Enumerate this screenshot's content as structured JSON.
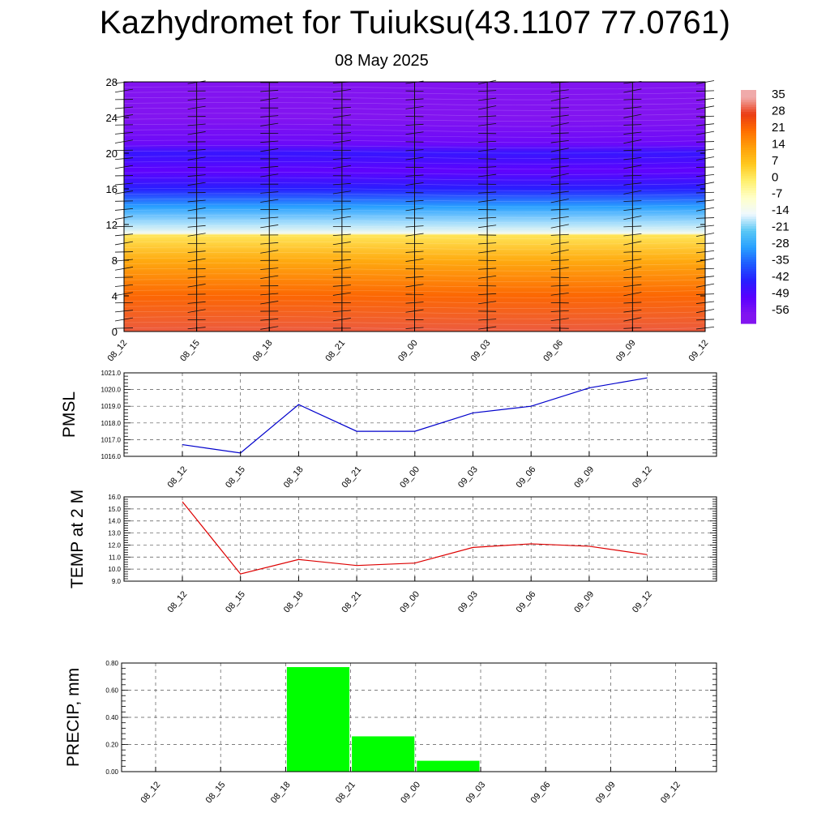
{
  "header": {
    "title": "Kazhydromet for Tuiuksu(43.1107 77.0761)",
    "subtitle": "08 May 2025"
  },
  "colorbar": {
    "labels": [
      "35",
      "28",
      "21",
      "14",
      "7",
      "0",
      "-7",
      "-14",
      "-21",
      "-28",
      "-35",
      "-42",
      "-49",
      "-56"
    ]
  },
  "chart_data": [
    {
      "type": "heatmap",
      "title": "Kazhydromet for Tuiuksu(43.1107 77.0761)",
      "subtitle": "08 May 2025",
      "x": [
        "08_12",
        "08_15",
        "08_18",
        "08_21",
        "09_00",
        "09_03",
        "09_06",
        "09_09",
        "09_12"
      ],
      "ylim": [
        0,
        28
      ],
      "yticks": [
        "0",
        "4",
        "8",
        "12",
        "16",
        "20",
        "24",
        "28"
      ],
      "colorbar_range": [
        -56,
        35
      ],
      "colorbar_ticks": [
        "35",
        "28",
        "21",
        "14",
        "7",
        "0",
        "-7",
        "-14",
        "-21",
        "-28",
        "-35",
        "-42",
        "-49",
        "-56"
      ],
      "profile": [
        {
          "level": 0,
          "value": 30
        },
        {
          "level": 4,
          "value": 22
        },
        {
          "level": 8,
          "value": 12
        },
        {
          "level": 10.8,
          "value": 2
        },
        {
          "level": 11,
          "value": -12
        },
        {
          "level": 12,
          "value": -17
        },
        {
          "level": 14,
          "value": -28
        },
        {
          "level": 16,
          "value": -42
        },
        {
          "level": 18,
          "value": -50
        },
        {
          "level": 20,
          "value": -44
        },
        {
          "level": 21,
          "value": -52
        },
        {
          "level": 24,
          "value": -56
        },
        {
          "level": 28,
          "value": -56
        }
      ],
      "overlay": "wind barbs at each time step"
    },
    {
      "type": "line",
      "ylabel": "PMSL",
      "x": [
        "08_12",
        "08_15",
        "08_18",
        "08_21",
        "09_00",
        "09_03",
        "09_06",
        "09_09",
        "09_12"
      ],
      "series": [
        {
          "values": [
            1016.7,
            1016.2,
            1019.1,
            1017.5,
            1017.5,
            1018.6,
            1019.0,
            1020.1,
            1020.7
          ],
          "color": "#0000cc"
        }
      ],
      "ylim": [
        1016.0,
        1021.0
      ],
      "yticks": [
        "1016.0",
        "1017.0",
        "1018.0",
        "1019.0",
        "1020.0",
        "1021.0"
      ],
      "grid": true
    },
    {
      "type": "line",
      "ylabel": "TEMP at 2 M",
      "x": [
        "08_12",
        "08_15",
        "08_18",
        "08_21",
        "09_00",
        "09_03",
        "09_06",
        "09_09",
        "09_12"
      ],
      "series": [
        {
          "values": [
            15.6,
            9.6,
            10.8,
            10.3,
            10.5,
            11.8,
            12.1,
            11.9,
            11.2
          ],
          "color": "#dd0000"
        }
      ],
      "ylim": [
        9.0,
        16.0
      ],
      "yticks": [
        "9.0",
        "10.0",
        "11.0",
        "12.0",
        "13.0",
        "14.0",
        "15.0",
        "16.0"
      ],
      "grid": true
    },
    {
      "type": "bar",
      "ylabel": "PRECIP, mm",
      "categories": [
        "08_12",
        "08_15",
        "08_18",
        "08_21",
        "09_00",
        "09_03",
        "09_06",
        "09_09",
        "09_12"
      ],
      "values": [
        0,
        0,
        0,
        0.77,
        0.26,
        0.08,
        0,
        0,
        0
      ],
      "color": "#00ff00",
      "ylim": [
        0,
        0.8
      ],
      "yticks": [
        "0.00",
        "0.20",
        "0.40",
        "0.60",
        "0.80"
      ],
      "grid": true
    }
  ]
}
